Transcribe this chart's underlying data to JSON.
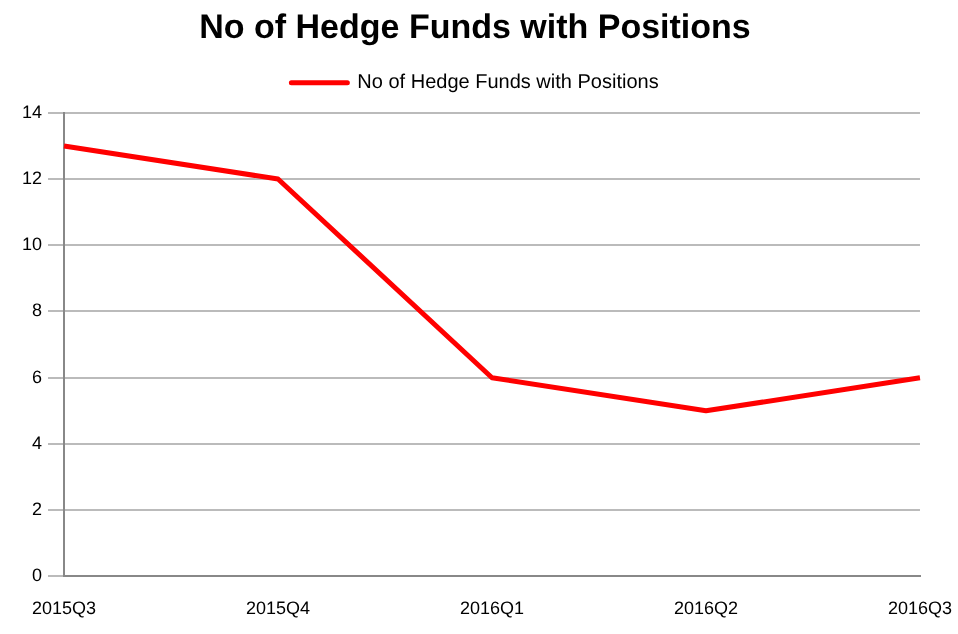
{
  "chart_data": {
    "type": "line",
    "title": "No of Hedge Funds with Positions",
    "categories": [
      "2015Q3",
      "2015Q4",
      "2016Q1",
      "2016Q2",
      "2016Q3"
    ],
    "series": [
      {
        "name": "No of Hedge Funds with Positions",
        "color": "#ff0000",
        "values": [
          13,
          12,
          6,
          5,
          6
        ]
      }
    ],
    "ylim": [
      0,
      14
    ],
    "yticks": [
      0,
      2,
      4,
      6,
      8,
      10,
      12,
      14
    ],
    "grid": "y",
    "legend": "top",
    "marker": "none",
    "line_style": "solid"
  }
}
